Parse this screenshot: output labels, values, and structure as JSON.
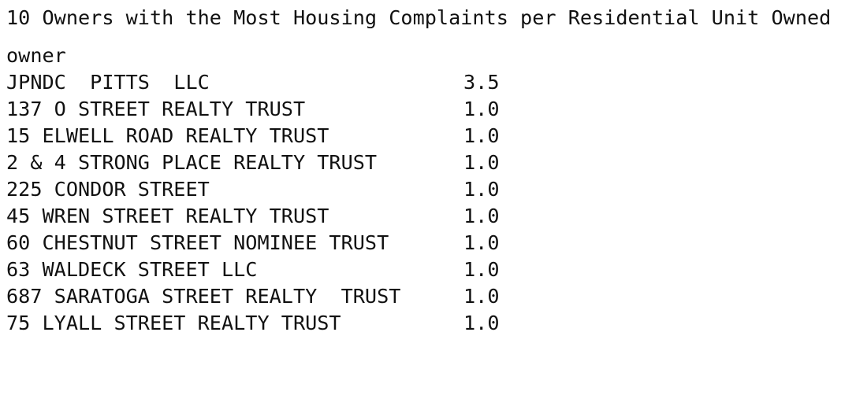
{
  "title": "10 Owners with the Most Housing Complaints per Residential Unit Owned",
  "index_name": "owner",
  "rows": [
    {
      "owner": "JPNDC  PITTS  LLC",
      "value": "3.5"
    },
    {
      "owner": "137 O STREET REALTY TRUST",
      "value": "1.0"
    },
    {
      "owner": "15 ELWELL ROAD REALTY TRUST",
      "value": "1.0"
    },
    {
      "owner": "2 & 4 STRONG PLACE REALTY TRUST",
      "value": "1.0"
    },
    {
      "owner": "225 CONDOR STREET",
      "value": "1.0"
    },
    {
      "owner": "45 WREN STREET REALTY TRUST",
      "value": "1.0"
    },
    {
      "owner": "60 CHESTNUT STREET NOMINEE TRUST",
      "value": "1.0"
    },
    {
      "owner": "63 WALDECK STREET LLC",
      "value": "1.0"
    },
    {
      "owner": "687 SARATOGA STREET REALTY  TRUST",
      "value": "1.0"
    },
    {
      "owner": "75 LYALL STREET REALTY TRUST",
      "value": "1.0"
    }
  ]
}
